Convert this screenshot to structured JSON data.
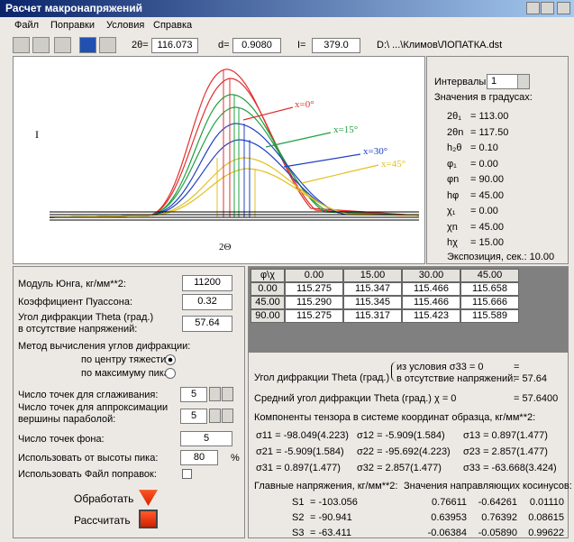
{
  "window": {
    "title": "Расчет макронапряжений"
  },
  "menu": [
    "Файл",
    "Поправки",
    "Условия",
    "Справка"
  ],
  "toolbar": {
    "two_theta_label": "2θ=",
    "two_theta": "116.073",
    "d_label": "d=",
    "d": "0.9080",
    "i_label": "I=",
    "i": "379.0",
    "file": "D:\\ ...\\Климов\\ЛОПАТКА.dst"
  },
  "plot": {
    "y_label": "I",
    "x_label": "2Θ",
    "curve_labels": [
      "x=0°",
      "x=15°",
      "x=30°",
      "x=45°"
    ]
  },
  "intervals": {
    "label": "Интервалы:",
    "value": "1",
    "heading": "Значения в градусах:",
    "rows": [
      [
        "2θ₁",
        "= 113.00"
      ],
      [
        "2θn",
        "= 117.50"
      ],
      [
        "h₂θ",
        "= 0.10"
      ],
      [
        "φ₁",
        "= 0.00"
      ],
      [
        "φn",
        "= 90.00"
      ],
      [
        "hφ",
        "= 45.00"
      ],
      [
        "χ₁",
        "= 0.00"
      ],
      [
        "χn",
        "= 45.00"
      ],
      [
        "hχ",
        "= 15.00"
      ]
    ],
    "exposure": "Экспозиция, сек.: 10.00"
  },
  "params": {
    "young_label": "Модуль Юнга, кг/мм**2:",
    "young": "11200",
    "poisson_label": "Коэффициент Пуассона:",
    "poisson": "0.32",
    "theta0_label": [
      "Угол дифракции Theta (град.)",
      "в отсутствие напряжений:"
    ],
    "theta0": "57.64",
    "method_label": "Метод вычисления углов дифракции:",
    "method_options": [
      "по центру тяжести",
      "по максимуму пика"
    ],
    "smooth_label": "Число точек для сглаживания:",
    "smooth": "5",
    "approx_label": [
      "Число точек для аппроксимации",
      "вершины параболой:"
    ],
    "approx": "5",
    "background_label": "Число точек фона:",
    "background": "5",
    "height_label": "Использовать от  высоты пика:",
    "height": "80",
    "height_unit": "%",
    "corrections_label": "Использовать Файл поправок:",
    "process_button": "Обработать",
    "calculate_button": "Рассчитать"
  },
  "table": {
    "header": [
      "φ\\χ",
      "0.00",
      "15.00",
      "30.00",
      "45.00"
    ],
    "rows": [
      [
        "0.00",
        "115.275",
        "115.347",
        "115.466",
        "115.658"
      ],
      [
        "45.00",
        "115.290",
        "115.345",
        "115.466",
        "115.666"
      ],
      [
        "90.00",
        "115.275",
        "115.317",
        "115.423",
        "115.589"
      ]
    ]
  },
  "results": {
    "theta_label": "Угол дифракции Theta (град.)",
    "theta_cond1": "из условия  σ33 = 0",
    "theta_val1": "=",
    "theta_cond2": "в отсутствие напряжений:",
    "theta_val2": "= 57.64",
    "mean_label": "Средний угол дифракции Theta (град.)  χ = 0",
    "mean_val": "= 57.6400",
    "tensor_heading": "Компоненты тензора в системе координат образца, кг/мм**2:",
    "tensor": [
      [
        "σ11 = -98.049(4.223)",
        "σ12 = -5.909(1.584)",
        "σ13 =  0.897(1.477)"
      ],
      [
        "σ21 = -5.909(1.584)",
        "σ22 = -95.692(4.223)",
        "σ23 =  2.857(1.477)"
      ],
      [
        "σ31 =  0.897(1.477)",
        "σ32 =  2.857(1.477)",
        "σ33 = -63.668(3.424)"
      ]
    ],
    "principal_heading": "Главные напряжения, кг/мм**2:",
    "cosines_heading": "Значения направляющих косинусов:",
    "principal": [
      {
        "name": "S1",
        "value": "= -103.056",
        "cosines": [
          "0.76611",
          "-0.64261",
          "0.01110"
        ]
      },
      {
        "name": "S2",
        "value": "= -90.941",
        "cosines": [
          "0.63953",
          "0.76392",
          "0.08615"
        ]
      },
      {
        "name": "S3",
        "value": "= -63.411",
        "cosines": [
          "-0.06384",
          "-0.05890",
          "0.99622"
        ]
      }
    ]
  }
}
